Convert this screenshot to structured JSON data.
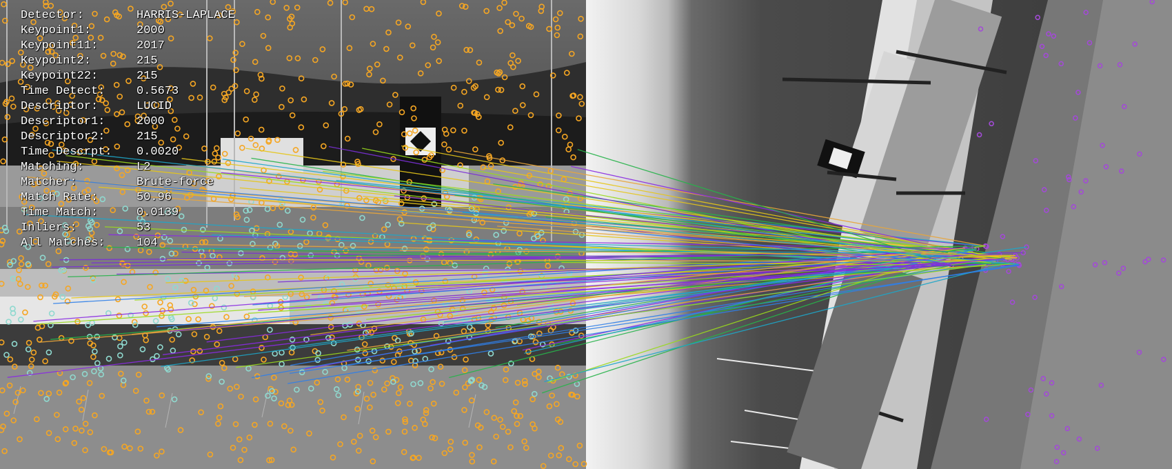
{
  "stats": [
    {
      "key": "Detector:",
      "value": "HARRIS-LAPLACE"
    },
    {
      "key": "Keypoint1:",
      "value": "2000"
    },
    {
      "key": "Keypoint11:",
      "value": "2017"
    },
    {
      "key": "Keypoint2:",
      "value": "215"
    },
    {
      "key": "Keypoint22:",
      "value": "215"
    },
    {
      "key": "Time Detect:",
      "value": "0.5673"
    },
    {
      "key": "Descriptor:",
      "value": "LUCID"
    },
    {
      "key": "Descriptor1:",
      "value": "2000"
    },
    {
      "key": "Descriptor2:",
      "value": "215"
    },
    {
      "key": "Time Descrpt:",
      "value": "0.0020"
    },
    {
      "key": "Matching:",
      "value": "L2"
    },
    {
      "key": "Matcher:",
      "value": "Brute-force"
    },
    {
      "key": "Match Rate:",
      "value": "50.96"
    },
    {
      "key": "Time Match:",
      "value": "0.0139"
    },
    {
      "key": "Inliers:",
      "value": "53"
    },
    {
      "key": "All Matches:",
      "value": "104"
    }
  ],
  "colors": {
    "keypoints_left": "#f5a623",
    "keypoints_matched": "#8fd9cf",
    "keypoints_right": "#a24bd6",
    "match_lines": [
      "#e6c619",
      "#2f7fe8",
      "#7a2fd6",
      "#27b34a",
      "#9ad91d",
      "#e8a63b",
      "#1ea6c8",
      "#8a2be2"
    ]
  },
  "icons": {
    "left_scene": "harbor-boats-photo-icon",
    "right_scene": "rotated-harbor-photo-icon"
  }
}
